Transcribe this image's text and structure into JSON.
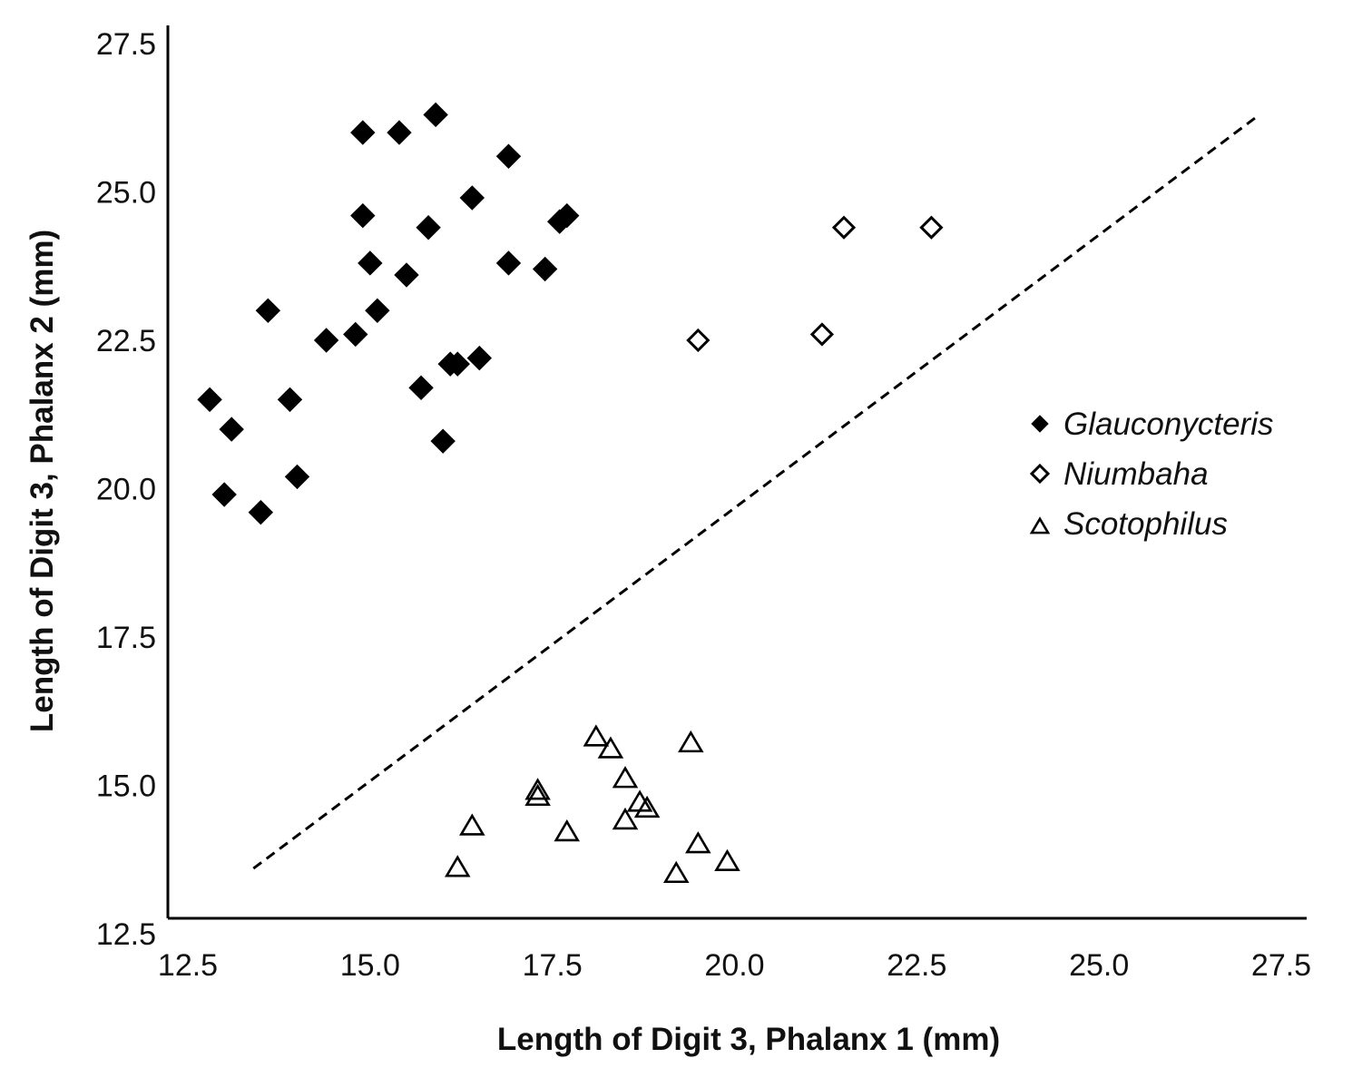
{
  "chart_data": {
    "type": "scatter",
    "title": "",
    "xlabel": "Length of Digit 3, Phalanx 1 (mm)",
    "ylabel": "Length of Digit 3, Phalanx 2 (mm)",
    "xlim": [
      12.5,
      27.5
    ],
    "ylim": [
      12.5,
      27.5
    ],
    "x_ticks": [
      "12.5",
      "15.0",
      "17.5",
      "20.0",
      "22.5",
      "25.0",
      "27.5"
    ],
    "y_ticks": [
      "12.5",
      "15.0",
      "17.5",
      "20.0",
      "22.5",
      "25.0",
      "27.5"
    ],
    "grid": false,
    "legend_position": "right",
    "reference_line": {
      "style": "dashed",
      "color": "#000000",
      "points": [
        [
          13.4,
          13.6
        ],
        [
          27.2,
          26.3
        ]
      ]
    },
    "series": [
      {
        "name": "Glauconycteris",
        "marker": "diamond-filled",
        "color": "#000000",
        "points": [
          [
            12.8,
            21.5
          ],
          [
            13.1,
            21.0
          ],
          [
            13.0,
            19.9
          ],
          [
            13.5,
            19.6
          ],
          [
            13.6,
            23.0
          ],
          [
            13.9,
            21.5
          ],
          [
            14.0,
            20.2
          ],
          [
            14.4,
            22.5
          ],
          [
            14.8,
            22.6
          ],
          [
            14.9,
            26.0
          ],
          [
            14.9,
            24.6
          ],
          [
            15.0,
            23.8
          ],
          [
            15.1,
            23.0
          ],
          [
            15.4,
            26.0
          ],
          [
            15.5,
            23.6
          ],
          [
            15.7,
            21.7
          ],
          [
            15.8,
            24.4
          ],
          [
            15.9,
            26.3
          ],
          [
            16.0,
            20.8
          ],
          [
            16.1,
            22.1
          ],
          [
            16.2,
            22.1
          ],
          [
            16.4,
            24.9
          ],
          [
            16.5,
            22.2
          ],
          [
            16.9,
            25.6
          ],
          [
            16.9,
            23.8
          ],
          [
            17.4,
            23.7
          ],
          [
            17.6,
            24.5
          ],
          [
            17.7,
            24.6
          ]
        ]
      },
      {
        "name": "Niumbaha",
        "marker": "diamond-open",
        "color": "#000000",
        "points": [
          [
            19.5,
            22.5
          ],
          [
            21.2,
            22.6
          ],
          [
            21.5,
            24.4
          ],
          [
            22.7,
            24.4
          ]
        ]
      },
      {
        "name": "Scotophilus",
        "marker": "triangle-open",
        "color": "#000000",
        "points": [
          [
            16.2,
            13.6
          ],
          [
            16.4,
            14.3
          ],
          [
            17.3,
            14.8
          ],
          [
            17.3,
            14.9
          ],
          [
            17.7,
            14.2
          ],
          [
            18.1,
            15.8
          ],
          [
            18.3,
            15.6
          ],
          [
            18.5,
            14.4
          ],
          [
            18.5,
            15.1
          ],
          [
            18.7,
            14.7
          ],
          [
            18.8,
            14.6
          ],
          [
            19.2,
            13.5
          ],
          [
            19.4,
            15.7
          ],
          [
            19.5,
            14.0
          ],
          [
            19.9,
            13.7
          ]
        ]
      }
    ]
  }
}
